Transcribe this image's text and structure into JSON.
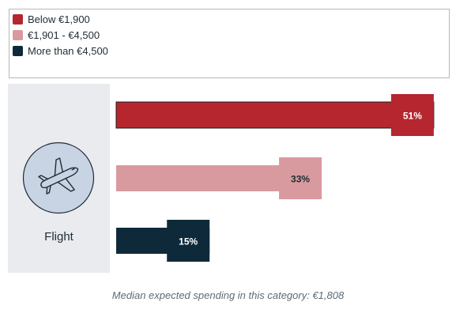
{
  "legend": {
    "items": [
      {
        "label": "Below €1,900",
        "color": "#b5262e"
      },
      {
        "label": "€1,901 - €4,500",
        "color": "#d89a9f"
      },
      {
        "label": "More than €4,500",
        "color": "#0e2a3a"
      }
    ]
  },
  "category": {
    "label": "Flight",
    "icon": "airplane-icon"
  },
  "footnote": "Median expected spending in this category: €1,808",
  "chart_data": {
    "type": "bar",
    "orientation": "horizontal",
    "categories": [
      "Flight"
    ],
    "series": [
      {
        "name": "Below €1,900",
        "values": [
          51
        ],
        "label": "51%",
        "color": "#b5262e"
      },
      {
        "name": "€1,901 - €4,500",
        "values": [
          33
        ],
        "label": "33%",
        "color": "#d89a9f"
      },
      {
        "name": "More than €4,500",
        "values": [
          15
        ],
        "label": "15%",
        "color": "#0e2a3a"
      }
    ],
    "unit": "%",
    "xlim": [
      0,
      51
    ],
    "grid": false,
    "legend_position": "top"
  }
}
